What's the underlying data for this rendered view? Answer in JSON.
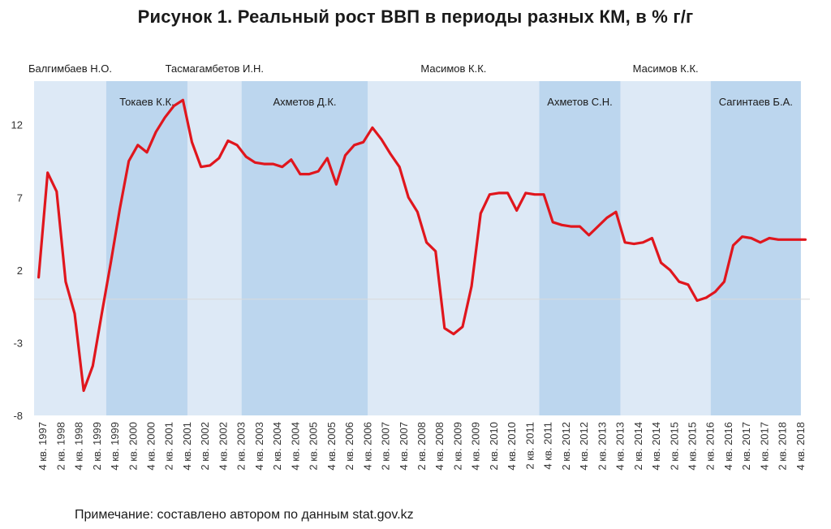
{
  "title": "Рисунок 1. Реальный рост ВВП в периоды разных КМ, в % г/г",
  "note": "Примечание: составлено автором по данным stat.gov.kz",
  "colors": {
    "line": "#e0161d",
    "band_light": "#dde9f6",
    "band_dark": "#bcd6ee",
    "zero_line": "#d9d9d9"
  },
  "chart_data": {
    "type": "line",
    "title": "Рисунок 1. Реальный рост ВВП в периоды разных КМ, в % г/г",
    "xlabel": "",
    "ylabel": "",
    "ylim": [
      -8,
      15
    ],
    "yticks": [
      12,
      7,
      2,
      -3,
      -8
    ],
    "ytick_labels": [
      "12",
      "7",
      "2",
      "-3",
      "-8"
    ],
    "x_labels": [
      "4 кв. 1997",
      "2 кв. 1998",
      "4 кв. 1998",
      "2 кв. 1999",
      "4 кв. 1999",
      "2 кв. 2000",
      "4 кв. 2000",
      "2 кв. 2001",
      "4 кв. 2001",
      "2 кв. 2002",
      "4 кв. 2002",
      "2 кв. 2003",
      "4 кв. 2003",
      "2 кв. 2004",
      "4 кв. 2004",
      "2 кв. 2005",
      "4 кв. 2005",
      "2 кв. 2006",
      "4 кв. 2006",
      "2 кв. 2007",
      "4 кв. 2007",
      "2 кв. 2008",
      "4 кв. 2008",
      "2 кв. 2009",
      "4 кв. 2009",
      "2 кв. 2010",
      "4 кв. 2010",
      "2 кв. 2011",
      "4 кв. 2011",
      "2 кв. 2012",
      "4 кв. 2012",
      "2 кв. 2013",
      "4 кв. 2013",
      "2 кв. 2014",
      "4 кв. 2014",
      "2 кв. 2015",
      "4 кв. 2015",
      "2 кв. 2016",
      "4 кв. 2016",
      "2 кв. 2017",
      "4 кв. 2017",
      "2 кв. 2018",
      "4 кв. 2018"
    ],
    "series": [
      {
        "name": "Реальный рост ВВП, % г/г",
        "values": [
          1.5,
          8.7,
          7.4,
          1.2,
          -1.0,
          -6.3,
          -4.6,
          -1.0,
          2.5,
          6.2,
          9.5,
          10.6,
          10.1,
          11.5,
          12.5,
          13.3,
          13.7,
          10.8,
          9.1,
          9.2,
          9.7,
          10.9,
          10.6,
          9.8,
          9.4,
          9.3,
          9.3,
          9.1,
          9.6,
          8.6,
          8.6,
          8.8,
          9.7,
          7.9,
          9.9,
          10.6,
          10.8,
          11.8,
          11.0,
          10.0,
          9.1,
          7.0,
          6.0,
          3.9,
          3.3,
          -2.0,
          -2.4,
          -1.9,
          0.9,
          5.9,
          7.2,
          7.3,
          7.3,
          6.1,
          7.3,
          7.2,
          7.2,
          5.3,
          5.1,
          5.0,
          5.0,
          4.4,
          5.0,
          5.6,
          6.0,
          3.9,
          3.8,
          3.9,
          4.2,
          2.5,
          2.0,
          1.2,
          1.0,
          -0.1,
          0.1,
          0.5,
          1.2,
          3.7,
          4.3,
          4.2,
          3.9,
          4.2,
          4.1,
          4.1,
          4.1,
          4.1
        ]
      }
    ],
    "periods": [
      {
        "name": "Балгимбаев Н.О.",
        "start": 0,
        "end": 8,
        "shade": "light",
        "label_row": "top"
      },
      {
        "name": "Токаев К.К.",
        "start": 8,
        "end": 17,
        "shade": "dark",
        "label_row": "inner"
      },
      {
        "name": "Тасмагамбетов И.Н.",
        "start": 17,
        "end": 23,
        "shade": "light",
        "label_row": "top"
      },
      {
        "name": "Ахметов Д.К.",
        "start": 23,
        "end": 37,
        "shade": "dark",
        "label_row": "inner"
      },
      {
        "name": "Масимов К.К.",
        "start": 37,
        "end": 56,
        "shade": "light",
        "label_row": "top"
      },
      {
        "name": "Ахметов С.Н.",
        "start": 56,
        "end": 65,
        "shade": "dark",
        "label_row": "inner"
      },
      {
        "name": "Масимов К.К.",
        "start": 65,
        "end": 75,
        "shade": "light",
        "label_row": "top"
      },
      {
        "name": "Сагинтаев Б.А.",
        "start": 75,
        "end": 85,
        "shade": "dark",
        "label_row": "inner"
      }
    ]
  }
}
